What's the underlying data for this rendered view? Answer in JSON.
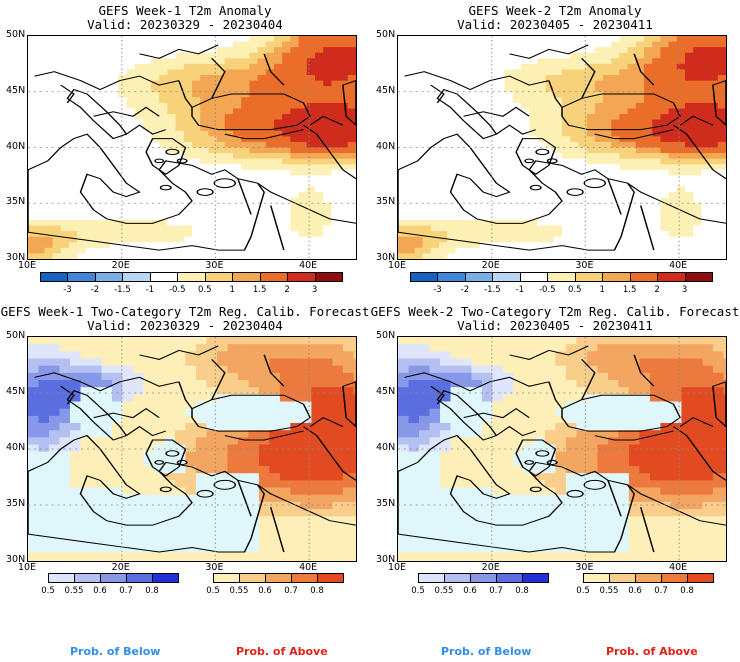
{
  "panels": [
    {
      "title": "GEFS Week-1 T2m Anomaly",
      "valid": "Valid: 20230329 - 20230404",
      "kind": "anom"
    },
    {
      "title": "GEFS Week-2 T2m Anomaly",
      "valid": "Valid: 20230405 - 20230411",
      "kind": "anom"
    },
    {
      "title": "GEFS Week-1 Two-Category T2m Reg. Calib. Forecast",
      "valid": "Valid: 20230329 - 20230404",
      "kind": "prob"
    },
    {
      "title": "GEFS Week-2 Two-Category T2m Reg. Calib. Forecast",
      "valid": "Valid: 20230405 - 20230411",
      "kind": "prob"
    }
  ],
  "axes": {
    "lat_labels": [
      "50N",
      "45N",
      "40N",
      "35N",
      "30N"
    ],
    "lon_labels": [
      "10E",
      "20E",
      "30E",
      "40E"
    ]
  },
  "anomaly_legend": {
    "labels": [
      "-3",
      "-2",
      "-1.5",
      "-1",
      "-0.5",
      "0.5",
      "1",
      "1.5",
      "2",
      "3"
    ],
    "colors": [
      "#1565c0",
      "#3f86d6",
      "#79aee6",
      "#b8d7f3",
      "#ffffff",
      "#fdf0b4",
      "#f8d27a",
      "#f3a653",
      "#ea6e2a",
      "#cf2c1e",
      "#8f0d0d"
    ]
  },
  "below_legend": {
    "labels": [
      "0.5",
      "0.55",
      "0.6",
      "0.7",
      "0.8"
    ],
    "colors": [
      "#dfe6fb",
      "#b3c0f1",
      "#8898e8",
      "#5a6ee0",
      "#2232d4"
    ]
  },
  "above_legend": {
    "labels": [
      "0.5",
      "0.55",
      "0.6",
      "0.7",
      "0.8"
    ],
    "colors": [
      "#fdefb7",
      "#f9cd8a",
      "#f3a562",
      "#ec7a3e",
      "#e24a22"
    ]
  },
  "footer": {
    "below": "Prob. of Below",
    "above": "Prob. of Above",
    "below_color": "#2f8fe6",
    "above_color": "#e0221a"
  }
}
